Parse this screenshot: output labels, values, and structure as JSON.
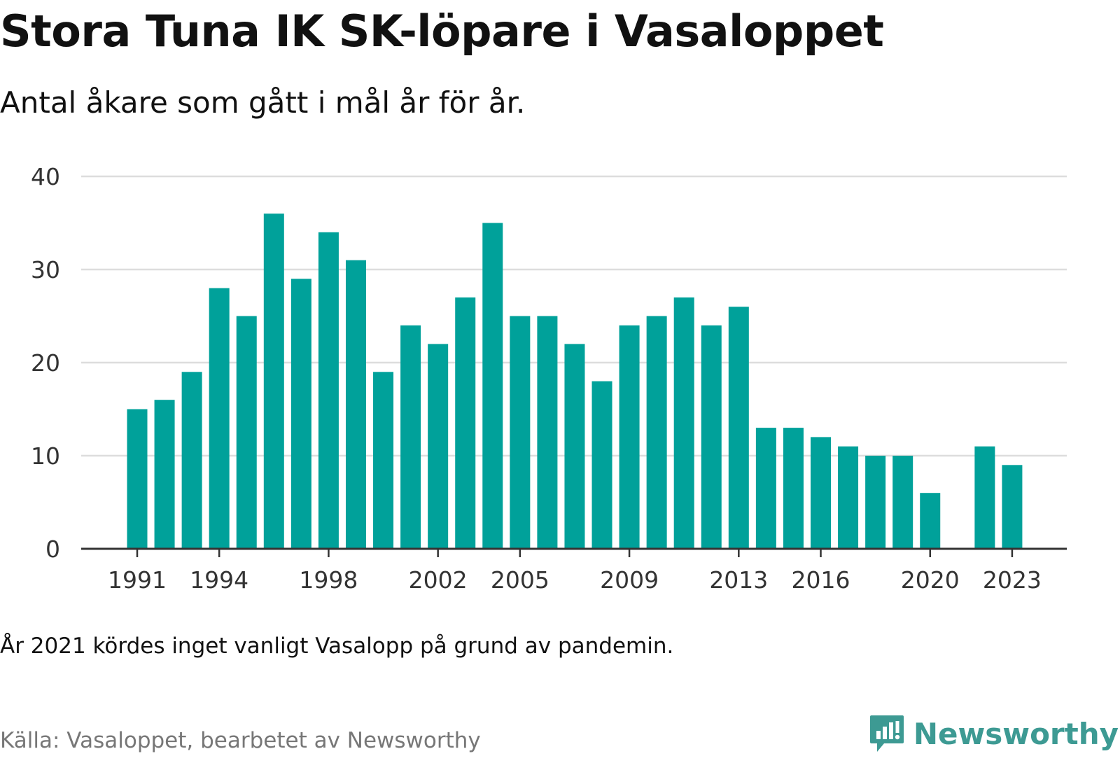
{
  "title": "Stora Tuna IK SK-löpare i Vasaloppet",
  "subtitle": "Antal åkare som gått i mål år för år.",
  "note": "År 2021 kördes inget vanligt Vasalopp på grund av pandemin.",
  "source": "Källa: Vasaloppet, bearbetet av Newsworthy",
  "brand": {
    "name": "Newsworthy",
    "icon": "newsworthy-logo-icon"
  },
  "colors": {
    "bar": "#00a19a",
    "grid": "#dddddd",
    "axis": "#333333",
    "brand": "#3d9a93"
  },
  "chart_data": {
    "type": "bar",
    "title": "Stora Tuna IK SK-löpare i Vasaloppet",
    "subtitle": "Antal åkare som gått i mål år för år.",
    "xlabel": "",
    "ylabel": "",
    "ylim": [
      0,
      40
    ],
    "yticks": [
      0,
      10,
      20,
      30,
      40
    ],
    "grid": true,
    "xticks": [
      "1991",
      "1994",
      "1998",
      "2002",
      "2005",
      "2009",
      "2013",
      "2016",
      "2020",
      "2023"
    ],
    "categories": [
      "1991",
      "1992",
      "1993",
      "1994",
      "1995",
      "1996",
      "1997",
      "1998",
      "1999",
      "2000",
      "2001",
      "2002",
      "2003",
      "2004",
      "2005",
      "2006",
      "2007",
      "2008",
      "2009",
      "2010",
      "2011",
      "2012",
      "2013",
      "2014",
      "2015",
      "2016",
      "2017",
      "2018",
      "2019",
      "2020",
      "2021",
      "2022",
      "2023"
    ],
    "values": [
      15,
      16,
      19,
      28,
      25,
      36,
      29,
      34,
      31,
      19,
      24,
      22,
      27,
      35,
      25,
      25,
      22,
      18,
      24,
      25,
      27,
      24,
      26,
      13,
      13,
      12,
      11,
      10,
      10,
      6,
      null,
      11,
      9
    ]
  }
}
